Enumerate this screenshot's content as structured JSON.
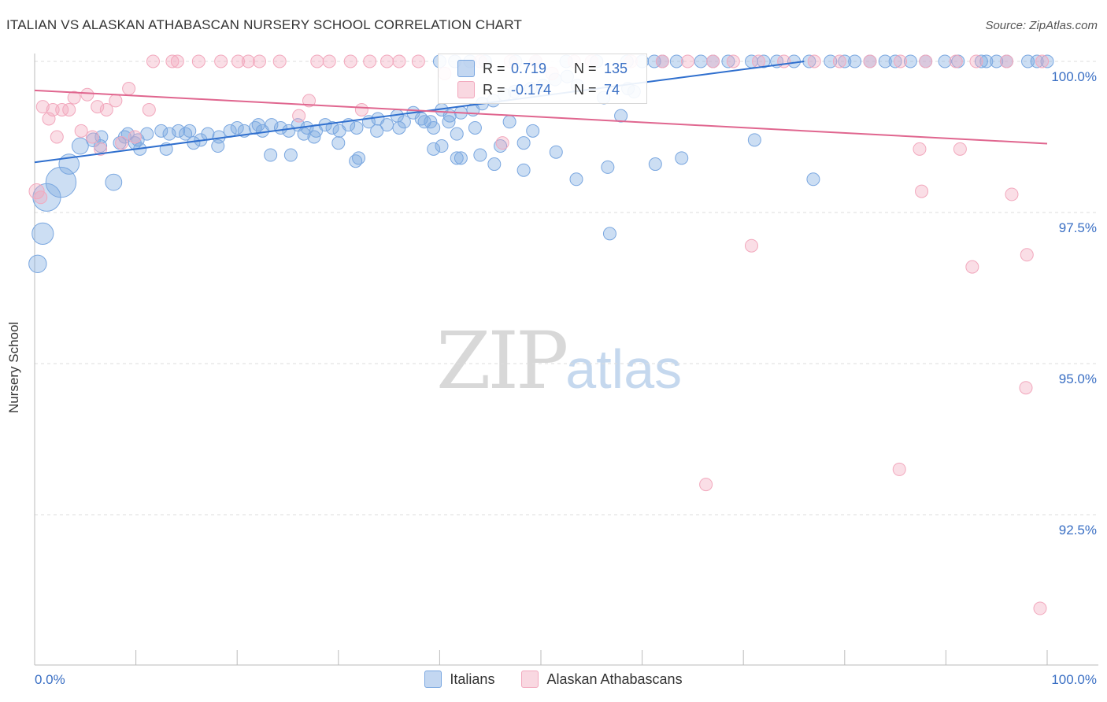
{
  "title": "ITALIAN VS ALASKAN ATHABASCAN NURSERY SCHOOL CORRELATION CHART",
  "source": "Source: ZipAtlas.com",
  "watermark": {
    "zip": "ZIP",
    "atlas": "atlas"
  },
  "stats": {
    "rows": [
      {
        "r_label": "R =",
        "r_value": "0.719",
        "n_label": "N =",
        "n_value": "135",
        "color": "#7aa7e0"
      },
      {
        "r_label": "R =",
        "r_value": "-0.174",
        "n_label": "N =",
        "n_value": "74",
        "color": "#f2a8bd"
      }
    ]
  },
  "chart_data": {
    "type": "scatter",
    "title": "ITALIAN VS ALASKAN ATHABASCAN NURSERY SCHOOL CORRELATION CHART",
    "xlabel": "",
    "ylabel": "Nursery School",
    "xlim": [
      0,
      100
    ],
    "ylim": [
      90.0,
      100.25
    ],
    "x_tick_labels": [
      "0.0%",
      "100.0%"
    ],
    "y_ticks": [
      92.5,
      95.0,
      97.5,
      100.0
    ],
    "y_tick_labels": [
      "92.5%",
      "95.0%",
      "97.5%",
      "100.0%"
    ],
    "grid": true,
    "legend_position": "bottom",
    "series": [
      {
        "name": "Italians",
        "color": "#7aa7e0",
        "line_color": "#2f6fce",
        "trend": {
          "x": [
            0,
            76
          ],
          "y": [
            98.33,
            100.0
          ]
        },
        "points": [
          [
            0.3,
            96.65,
            1.4
          ],
          [
            0.8,
            97.15,
            1.7
          ],
          [
            1.2,
            97.75,
            2.2
          ],
          [
            2.6,
            98.0,
            2.4
          ],
          [
            3.4,
            98.3,
            1.6
          ],
          [
            4.5,
            98.6,
            1.3
          ],
          [
            5.8,
            98.7,
            1.1
          ],
          [
            7.8,
            98.0,
            1.3
          ],
          [
            6.6,
            98.75,
            1
          ],
          [
            8.4,
            98.65,
            1
          ],
          [
            9.2,
            98.8,
            1
          ],
          [
            8.9,
            98.75,
            1
          ],
          [
            10.2,
            98.7,
            1
          ],
          [
            11.1,
            98.8,
            1
          ],
          [
            10.4,
            98.55,
            1
          ],
          [
            12.5,
            98.85,
            1
          ],
          [
            13.3,
            98.8,
            1
          ],
          [
            14.2,
            98.85,
            1
          ],
          [
            14.9,
            98.8,
            1
          ],
          [
            15.3,
            98.85,
            1
          ],
          [
            16.4,
            98.7,
            1
          ],
          [
            17.1,
            98.8,
            1
          ],
          [
            18.2,
            98.75,
            1
          ],
          [
            19.3,
            98.85,
            1
          ],
          [
            20.0,
            98.9,
            1
          ],
          [
            20.7,
            98.85,
            1
          ],
          [
            21.8,
            98.9,
            1
          ],
          [
            22.5,
            98.85,
            1
          ],
          [
            23.4,
            98.95,
            1
          ],
          [
            24.3,
            98.9,
            1
          ],
          [
            25.1,
            98.85,
            1
          ],
          [
            26.0,
            98.95,
            1
          ],
          [
            26.9,
            98.9,
            1
          ],
          [
            27.8,
            98.85,
            1
          ],
          [
            28.7,
            98.95,
            1
          ],
          [
            29.4,
            98.9,
            1
          ],
          [
            30.1,
            98.85,
            1
          ],
          [
            31.0,
            98.95,
            1
          ],
          [
            31.8,
            98.9,
            1
          ],
          [
            33.0,
            99.0,
            1
          ],
          [
            33.9,
            99.05,
            1
          ],
          [
            34.8,
            98.95,
            1
          ],
          [
            35.8,
            99.1,
            1
          ],
          [
            36.5,
            99.0,
            1
          ],
          [
            37.4,
            99.15,
            1
          ],
          [
            38.2,
            99.05,
            1
          ],
          [
            39.1,
            99.0,
            1
          ],
          [
            40.2,
            99.2,
            1
          ],
          [
            41.0,
            99.1,
            1
          ],
          [
            42.1,
            99.15,
            1
          ],
          [
            43.3,
            99.2,
            1
          ],
          [
            44.2,
            99.3,
            1
          ],
          [
            45.3,
            99.35,
            1
          ],
          [
            46.4,
            99.45,
            1
          ],
          [
            47.4,
            99.5,
            1
          ],
          [
            49.0,
            99.55,
            1
          ],
          [
            50.2,
            99.6,
            1
          ],
          [
            51.4,
            99.7,
            1
          ],
          [
            52.6,
            99.75,
            1
          ],
          [
            58.6,
            99.55,
            1
          ],
          [
            53.6,
            99.6,
            1
          ],
          [
            56.2,
            99.4,
            1
          ],
          [
            59.2,
            99.5,
            1
          ],
          [
            9.9,
            98.65,
            1
          ],
          [
            6.5,
            98.6,
            1
          ],
          [
            13.0,
            98.55,
            1
          ],
          [
            15.7,
            98.65,
            1
          ],
          [
            18.1,
            98.6,
            1
          ],
          [
            22.1,
            98.95,
            1
          ],
          [
            26.6,
            98.8,
            1
          ],
          [
            27.6,
            98.75,
            1
          ],
          [
            30.0,
            98.65,
            1
          ],
          [
            33.8,
            98.85,
            1
          ],
          [
            36.0,
            98.9,
            1
          ],
          [
            38.5,
            99.0,
            1
          ],
          [
            40.2,
            98.6,
            1
          ],
          [
            41.7,
            98.8,
            1
          ],
          [
            43.5,
            98.9,
            1
          ],
          [
            46.0,
            98.6,
            1
          ],
          [
            48.3,
            98.65,
            1
          ],
          [
            51.5,
            98.5,
            1
          ],
          [
            56.6,
            98.25,
            1
          ],
          [
            71.1,
            98.7,
            1
          ],
          [
            42.1,
            98.4,
            1
          ],
          [
            45.4,
            98.3,
            1
          ],
          [
            53.5,
            98.05,
            1
          ],
          [
            56.8,
            97.15,
            1
          ],
          [
            23.3,
            98.45,
            1
          ],
          [
            25.3,
            98.45,
            1
          ],
          [
            31.7,
            98.35,
            1
          ],
          [
            32.0,
            98.4,
            1
          ],
          [
            39.4,
            98.55,
            1
          ],
          [
            41.7,
            98.4,
            1
          ],
          [
            44.0,
            98.45,
            1
          ],
          [
            63.9,
            98.4,
            1
          ],
          [
            40.9,
            99.0,
            1
          ],
          [
            39.4,
            98.9,
            1
          ],
          [
            46.9,
            99.0,
            1
          ],
          [
            49.2,
            98.85,
            1
          ],
          [
            57.9,
            99.1,
            1
          ],
          [
            61.3,
            98.3,
            1
          ],
          [
            76.9,
            98.05,
            1
          ],
          [
            48.3,
            98.2,
            1
          ],
          [
            40.0,
            100.0,
            1
          ],
          [
            41.5,
            100.0,
            1
          ],
          [
            43.0,
            100.0,
            1
          ],
          [
            44.5,
            100.0,
            1
          ],
          [
            47.5,
            100.0,
            1
          ],
          [
            49.5,
            100.0,
            1
          ],
          [
            52.5,
            100.0,
            1
          ],
          [
            55.5,
            100.0,
            1
          ],
          [
            58.5,
            100.0,
            1
          ],
          [
            61.2,
            100.0,
            1
          ],
          [
            63.4,
            100.0,
            1
          ],
          [
            65.8,
            100.0,
            1
          ],
          [
            68.5,
            100.0,
            1
          ],
          [
            70.8,
            100.0,
            1
          ],
          [
            73.3,
            100.0,
            1
          ],
          [
            76.5,
            100.0,
            1
          ],
          [
            78.6,
            100.0,
            1
          ],
          [
            80.0,
            100.0,
            1
          ],
          [
            82.5,
            100.0,
            1
          ],
          [
            84.0,
            100.0,
            1
          ],
          [
            86.5,
            100.0,
            1
          ],
          [
            89.9,
            100.0,
            1
          ],
          [
            91.2,
            100.0,
            1
          ],
          [
            93.5,
            100.0,
            1
          ],
          [
            95.0,
            100.0,
            1
          ],
          [
            96.0,
            100.0,
            1
          ],
          [
            98.1,
            100.0,
            1
          ],
          [
            100.0,
            100.0,
            1
          ],
          [
            60.0,
            100.0,
            1
          ],
          [
            67.0,
            100.0,
            1
          ],
          [
            72.0,
            100.0,
            1
          ],
          [
            81.0,
            100.0,
            1
          ],
          [
            88.0,
            100.0,
            1
          ],
          [
            94.0,
            100.0,
            1
          ],
          [
            99.0,
            100.0,
            1
          ],
          [
            62.0,
            100.0,
            1
          ],
          [
            75.0,
            100.0,
            1
          ],
          [
            85.0,
            100.0,
            1
          ]
        ]
      },
      {
        "name": "Alaskan Athabascans",
        "color": "#f2a8bd",
        "line_color": "#e0668f",
        "trend": {
          "x": [
            0,
            100
          ],
          "y": [
            99.52,
            98.64
          ]
        },
        "points": [
          [
            0.2,
            97.85,
            1.2
          ],
          [
            0.6,
            97.75,
            1
          ],
          [
            0.8,
            99.25,
            1
          ],
          [
            1.4,
            99.05,
            1
          ],
          [
            1.8,
            99.2,
            1
          ],
          [
            2.2,
            98.75,
            1
          ],
          [
            2.7,
            99.2,
            1
          ],
          [
            3.4,
            99.2,
            1
          ],
          [
            3.9,
            99.4,
            1
          ],
          [
            4.6,
            98.85,
            1
          ],
          [
            5.2,
            99.45,
            1
          ],
          [
            5.7,
            98.75,
            1
          ],
          [
            6.2,
            99.25,
            1
          ],
          [
            6.5,
            98.55,
            1
          ],
          [
            7.1,
            99.2,
            1
          ],
          [
            8.0,
            99.35,
            1
          ],
          [
            8.6,
            98.65,
            1
          ],
          [
            9.3,
            99.55,
            1
          ],
          [
            9.9,
            98.75,
            1
          ],
          [
            11.3,
            99.2,
            1
          ],
          [
            11.7,
            100.0,
            1
          ],
          [
            13.6,
            100.0,
            1
          ],
          [
            14.1,
            100.0,
            1
          ],
          [
            16.2,
            100.0,
            1
          ],
          [
            18.4,
            100.0,
            1
          ],
          [
            20.1,
            100.0,
            1
          ],
          [
            21.1,
            100.0,
            1
          ],
          [
            22.2,
            100.0,
            1
          ],
          [
            24.2,
            100.0,
            1
          ],
          [
            26.1,
            99.1,
            1
          ],
          [
            27.1,
            99.35,
            1
          ],
          [
            27.9,
            100.0,
            1
          ],
          [
            29.1,
            100.0,
            1
          ],
          [
            31.2,
            100.0,
            1
          ],
          [
            32.3,
            99.2,
            1
          ],
          [
            33.1,
            100.0,
            1
          ],
          [
            34.8,
            100.0,
            1
          ],
          [
            36.0,
            100.0,
            1
          ],
          [
            37.9,
            100.0,
            1
          ],
          [
            40.5,
            99.8,
            1
          ],
          [
            46.2,
            98.65,
            1
          ],
          [
            51.1,
            99.8,
            1
          ],
          [
            55.0,
            100.0,
            1
          ],
          [
            58.9,
            100.0,
            1
          ],
          [
            62.0,
            100.0,
            1
          ],
          [
            64.5,
            100.0,
            1
          ],
          [
            67.0,
            100.0,
            1
          ],
          [
            69.0,
            100.0,
            1
          ],
          [
            71.5,
            100.0,
            1
          ],
          [
            74.0,
            100.0,
            1
          ],
          [
            77.0,
            100.0,
            1
          ],
          [
            79.5,
            100.0,
            1
          ],
          [
            82.5,
            100.0,
            1
          ],
          [
            85.5,
            100.0,
            1
          ],
          [
            88.0,
            100.0,
            1
          ],
          [
            91.0,
            100.0,
            1
          ],
          [
            93.0,
            100.0,
            1
          ],
          [
            96.0,
            100.0,
            1
          ],
          [
            99.5,
            100.0,
            1
          ],
          [
            53.3,
            100.0,
            1
          ],
          [
            70.8,
            96.95,
            1
          ],
          [
            87.4,
            98.55,
            1
          ],
          [
            91.4,
            98.55,
            1
          ],
          [
            87.6,
            97.85,
            1
          ],
          [
            96.5,
            97.8,
            1
          ],
          [
            92.6,
            96.6,
            1
          ],
          [
            98.0,
            96.8,
            1
          ],
          [
            97.9,
            94.6,
            1
          ],
          [
            66.3,
            93.0,
            1
          ],
          [
            85.4,
            93.25,
            1
          ],
          [
            99.3,
            90.95,
            1
          ],
          [
            47.0,
            100.0,
            1
          ],
          [
            44.0,
            100.0,
            1
          ],
          [
            49.5,
            100.0,
            1
          ]
        ]
      }
    ]
  }
}
